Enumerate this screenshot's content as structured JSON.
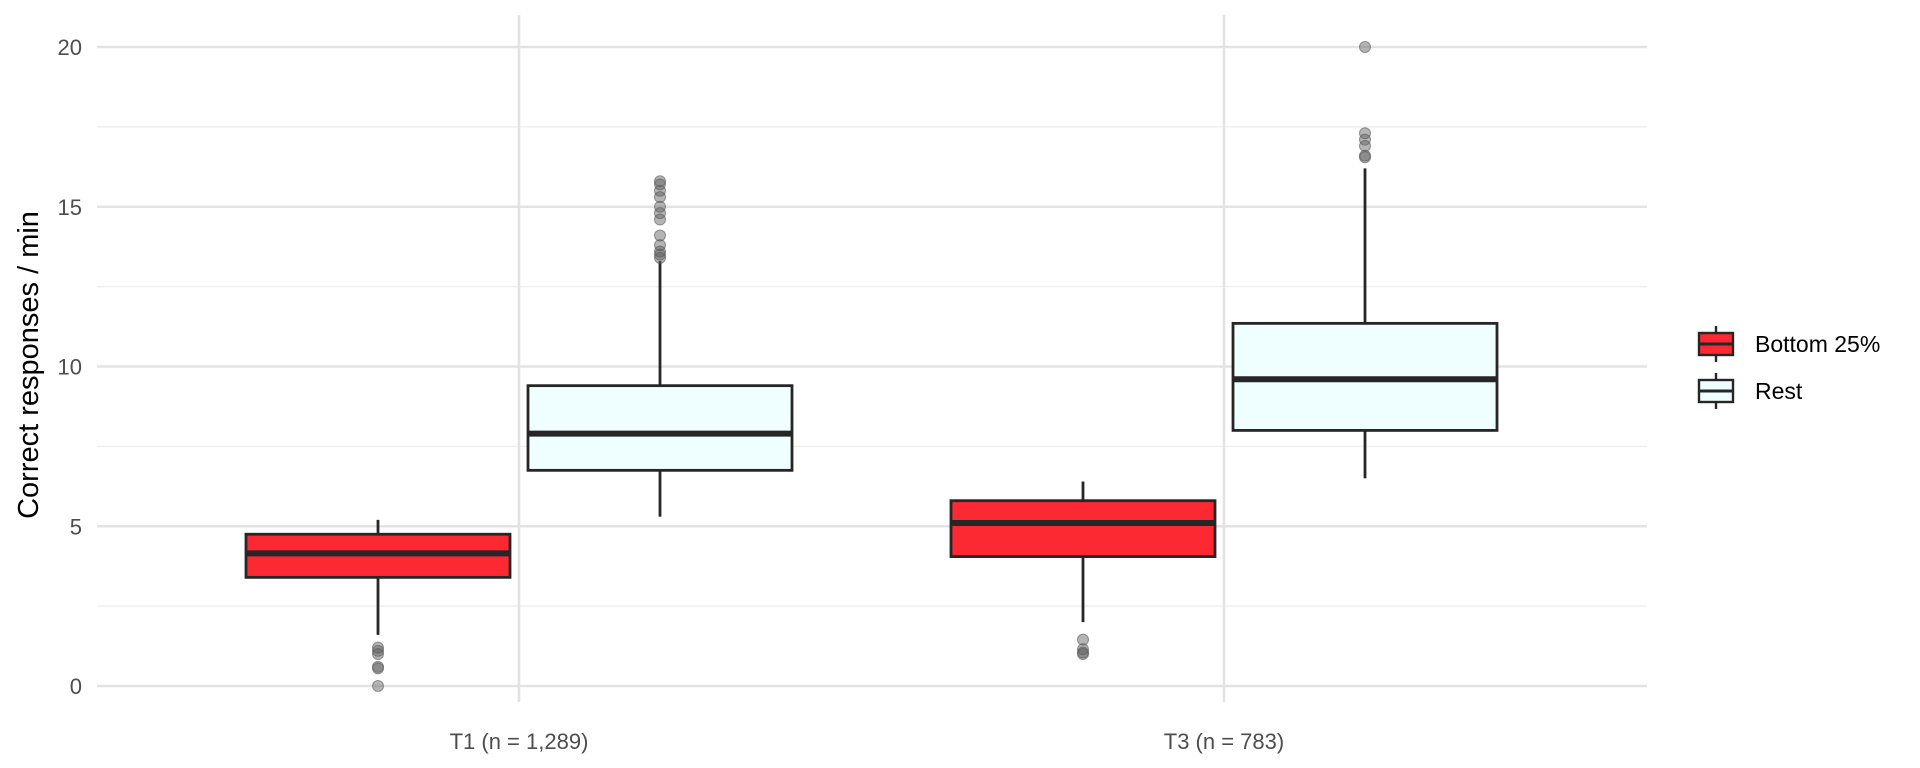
{
  "chart_data": {
    "type": "boxplot",
    "title": "",
    "xlabel": "",
    "ylabel": "Correct responses / min",
    "ylim": [
      -0.9,
      21
    ],
    "yticks": [
      0,
      5,
      10,
      15,
      20
    ],
    "y_minor_ticks": [
      2.5,
      7.5,
      12.5,
      17.5
    ],
    "grid": true,
    "legend_position": "right",
    "categories": [
      "T1 (n = 1,289)",
      "T3 (n = 783)"
    ],
    "series": [
      {
        "name": "Bottom 25%",
        "color": "#fc2832",
        "boxes": [
          {
            "category": "T1 (n = 1,289)",
            "whisker_low": 1.6,
            "q1": 3.4,
            "median": 4.15,
            "q3": 4.75,
            "whisker_high": 5.2,
            "outliers": [
              1.2,
              1.1,
              1.0,
              0.6,
              0.55,
              0.0
            ]
          },
          {
            "category": "T3 (n = 783)",
            "whisker_low": 2.0,
            "q1": 4.05,
            "median": 5.1,
            "q3": 5.8,
            "whisker_high": 6.4,
            "outliers": [
              1.45,
              1.15,
              1.05,
              1.0
            ]
          }
        ]
      },
      {
        "name": "Rest",
        "color": "#efffff",
        "boxes": [
          {
            "category": "T1 (n = 1,289)",
            "whisker_low": 5.3,
            "q1": 6.75,
            "median": 7.9,
            "q3": 9.4,
            "whisker_high": 13.3,
            "outliers": [
              15.8,
              15.7,
              15.5,
              15.3,
              15.0,
              14.8,
              14.6,
              14.1,
              13.8,
              13.6,
              13.5,
              13.4
            ]
          },
          {
            "category": "T3 (n = 783)",
            "whisker_low": 6.5,
            "q1": 8.0,
            "median": 9.6,
            "q3": 11.35,
            "whisker_high": 16.2,
            "outliers": [
              20.0,
              17.3,
              17.1,
              16.9,
              16.6,
              16.55
            ]
          }
        ]
      }
    ],
    "colors": {
      "grid_major": "#e3e3e3",
      "grid_minor": "#efefef",
      "box_outline": "#262626",
      "outlier_point": "#5a5a5a"
    }
  }
}
